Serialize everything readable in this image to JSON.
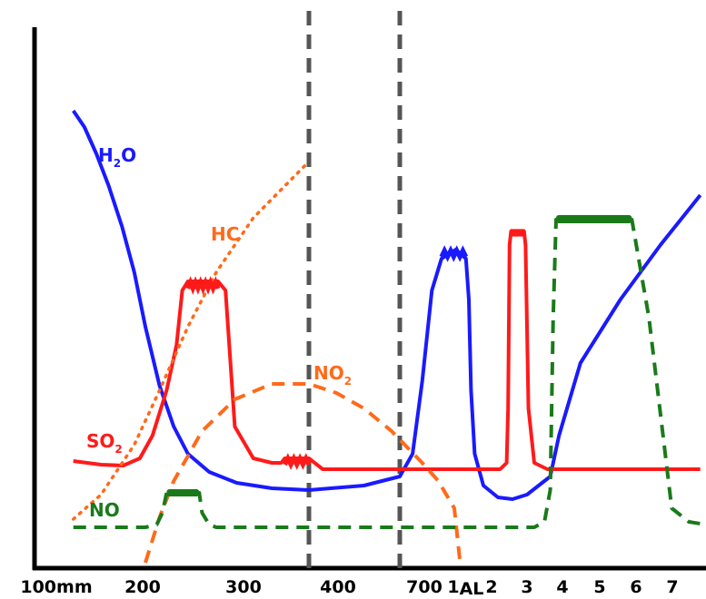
{
  "chart_data": {
    "type": "line",
    "title": "",
    "xlabel": "",
    "ylabel": "",
    "x_tick_labels": [
      "100mm",
      "200",
      "300",
      "400",
      "700",
      "1",
      "AL",
      "2",
      "3",
      "4",
      "5",
      "6",
      "7"
    ],
    "vertical_markers": [
      400,
      700
    ],
    "series": [
      {
        "name": "H2O",
        "label_main": "H",
        "label_sub": "2",
        "label_end": "O",
        "color": "#1a1aff",
        "style": "solid",
        "points": [
          [
            0.35,
            122
          ],
          [
            0.45,
            140
          ],
          [
            0.56,
            170
          ],
          [
            0.67,
            205
          ],
          [
            0.79,
            250
          ],
          [
            0.9,
            300
          ],
          [
            1.0,
            360
          ],
          [
            1.1,
            425
          ],
          [
            1.2,
            470
          ],
          [
            1.3,
            500
          ],
          [
            1.45,
            520
          ],
          [
            1.61,
            532
          ],
          [
            1.8,
            538
          ],
          [
            2.0,
            540
          ],
          [
            2.2,
            535
          ],
          [
            2.33,
            525
          ],
          [
            2.37,
            500
          ],
          [
            2.4,
            420
          ],
          [
            2.43,
            320
          ],
          [
            2.46,
            285
          ],
          [
            2.52,
            275
          ],
          [
            2.66,
            285
          ],
          [
            2.7,
            330
          ],
          [
            2.73,
            430
          ],
          [
            2.78,
            500
          ],
          [
            2.9,
            535
          ],
          [
            3.1,
            548
          ],
          [
            3.3,
            550
          ],
          [
            3.5,
            545
          ],
          [
            3.66,
            525
          ],
          [
            3.72,
            480
          ],
          [
            3.78,
            400
          ],
          [
            3.85,
            330
          ],
          [
            3.92,
            270
          ],
          [
            3.99,
            215
          ]
        ]
      },
      {
        "name": "SO2",
        "label_main": "SO",
        "label_sub": "2",
        "label_end": "",
        "color": "#ff1a1a",
        "style": "solid",
        "points": [
          [
            0.35,
            508
          ],
          [
            0.6,
            512
          ],
          [
            0.8,
            513
          ],
          [
            0.95,
            505
          ],
          [
            1.05,
            480
          ],
          [
            1.15,
            430
          ],
          [
            1.22,
            380
          ],
          [
            1.26,
            320
          ],
          [
            1.3,
            310
          ],
          [
            1.51,
            310
          ],
          [
            1.55,
            320
          ],
          [
            1.57,
            380
          ],
          [
            1.6,
            470
          ],
          [
            1.7,
            505
          ],
          [
            1.8,
            510
          ],
          [
            1.85,
            510
          ],
          [
            1.87,
            505
          ],
          [
            2.0,
            505
          ],
          [
            2.05,
            517
          ],
          [
            2.4,
            517
          ],
          [
            2.9,
            517
          ],
          [
            3.13,
            517
          ],
          [
            3.22,
            510
          ],
          [
            3.24,
            450
          ],
          [
            3.26,
            270
          ],
          [
            3.28,
            255
          ],
          [
            3.46,
            255
          ],
          [
            3.48,
            270
          ],
          [
            3.51,
            450
          ],
          [
            3.55,
            510
          ],
          [
            3.64,
            517
          ],
          [
            3.99,
            517
          ]
        ]
      },
      {
        "name": "NO2",
        "label_main": "NO",
        "label_sub": "2",
        "label_end": "",
        "color": "#ff6a1a",
        "style": "dashed",
        "points": [
          [
            1.0,
            620
          ],
          [
            1.1,
            570
          ],
          [
            1.2,
            530
          ],
          [
            1.4,
            475
          ],
          [
            1.6,
            440
          ],
          [
            1.8,
            423
          ],
          [
            2.0,
            423
          ],
          [
            2.1,
            433
          ],
          [
            2.2,
            450
          ],
          [
            2.3,
            475
          ],
          [
            2.4,
            510
          ],
          [
            2.45,
            530
          ],
          [
            2.5,
            560
          ],
          [
            2.54,
            590
          ],
          [
            2.58,
            620
          ]
        ]
      },
      {
        "name": "HC",
        "label_main": "HC",
        "label_sub": "",
        "label_end": "",
        "color": "#ff6a1a",
        "style": "dotted",
        "points": [
          [
            0.35,
            572
          ],
          [
            0.6,
            545
          ],
          [
            0.9,
            490
          ],
          [
            1.1,
            430
          ],
          [
            1.3,
            360
          ],
          [
            1.5,
            300
          ],
          [
            1.7,
            240
          ],
          [
            2.0,
            178
          ]
        ]
      },
      {
        "name": "NO",
        "label_main": "NO",
        "label_sub": "",
        "label_end": "",
        "color": "#1a7a1a",
        "style": "dashed",
        "points": [
          [
            0.35,
            581
          ],
          [
            1.0,
            581
          ],
          [
            1.08,
            578
          ],
          [
            1.12,
            565
          ],
          [
            1.15,
            543
          ],
          [
            1.38,
            543
          ],
          [
            1.4,
            565
          ],
          [
            1.45,
            578
          ],
          [
            1.5,
            581
          ],
          [
            2.3,
            581
          ],
          [
            3.55,
            581
          ],
          [
            3.62,
            575
          ],
          [
            3.66,
            540
          ],
          [
            3.68,
            350
          ],
          [
            3.7,
            242
          ],
          [
            3.87,
            242
          ],
          [
            3.9,
            350
          ],
          [
            3.94,
            560
          ],
          [
            3.97,
            575
          ],
          [
            3.99,
            577
          ]
        ]
      }
    ]
  }
}
